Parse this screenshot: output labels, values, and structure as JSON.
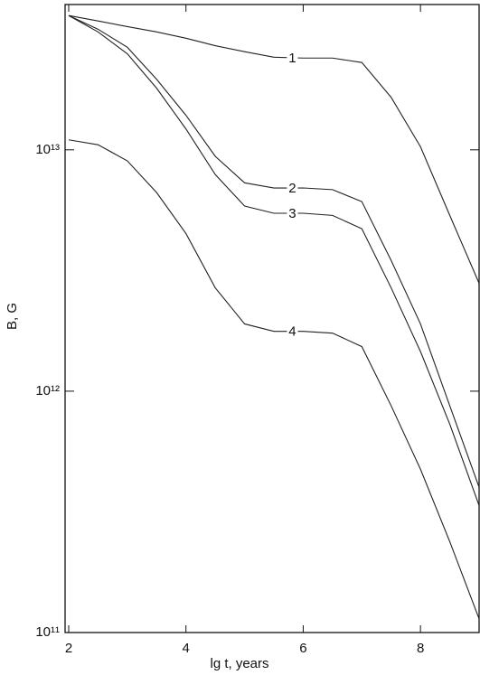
{
  "chart_data": {
    "type": "line",
    "log_y": true,
    "xlabel": "lg t, years",
    "ylabel": "B, G",
    "x": [
      2,
      2.5,
      3,
      3.5,
      4,
      4.5,
      5,
      5.5,
      6,
      6.5,
      7,
      7.5,
      8,
      8.5,
      9
    ],
    "series": [
      {
        "name": "1",
        "color": "#222222",
        "values": [
          36000000000000.0,
          34200000000000.0,
          32400000000000.0,
          30800000000000.0,
          29000000000000.0,
          27000000000000.0,
          25500000000000.0,
          24200000000000.0,
          24000000000000.0,
          24000000000000.0,
          23000000000000.0,
          16500000000000.0,
          10300000000000.0,
          5350000000000.0,
          2800000000000.0
        ]
      },
      {
        "name": "2",
        "color": "#222222",
        "values": [
          36000000000000.0,
          31600000000000.0,
          26600000000000.0,
          19600000000000.0,
          13900000000000.0,
          9400000000000.0,
          7300000000000.0,
          6950000000000.0,
          6950000000000.0,
          6840000000000.0,
          6100000000000.0,
          3480000000000.0,
          1900000000000.0,
          870000000000.0,
          400000000000.0
        ]
      },
      {
        "name": "3",
        "color": "#222222",
        "values": [
          36000000000000.0,
          30800000000000.0,
          25000000000000.0,
          18000000000000.0,
          12200000000000.0,
          7900000000000.0,
          5850000000000.0,
          5460000000000.0,
          5460000000000.0,
          5350000000000.0,
          4710000000000.0,
          2680000000000.0,
          1460000000000.0,
          730000000000.0,
          336000000000.0
        ]
      },
      {
        "name": "4",
        "color": "#222222",
        "values": [
          11000000000000.0,
          10500000000000.0,
          9000000000000.0,
          6650000000000.0,
          4500000000000.0,
          2680000000000.0,
          1900000000000.0,
          1770000000000.0,
          1770000000000.0,
          1740000000000.0,
          1530000000000.0,
          870000000000.0,
          475000000000.0,
          238000000000.0,
          114000000000.0
        ]
      }
    ],
    "xlim": [
      2,
      9
    ],
    "xticks": [
      2,
      4,
      6,
      8
    ],
    "ylim": [
      100000000000.0,
      40000000000000.0
    ],
    "yticks": [
      {
        "value": 100000000000.0,
        "label": "10¹¹"
      },
      {
        "value": 1000000000000.0,
        "label": "10¹²"
      },
      {
        "value": 10000000000000.0,
        "label": "10¹³"
      }
    ],
    "grid": false
  }
}
